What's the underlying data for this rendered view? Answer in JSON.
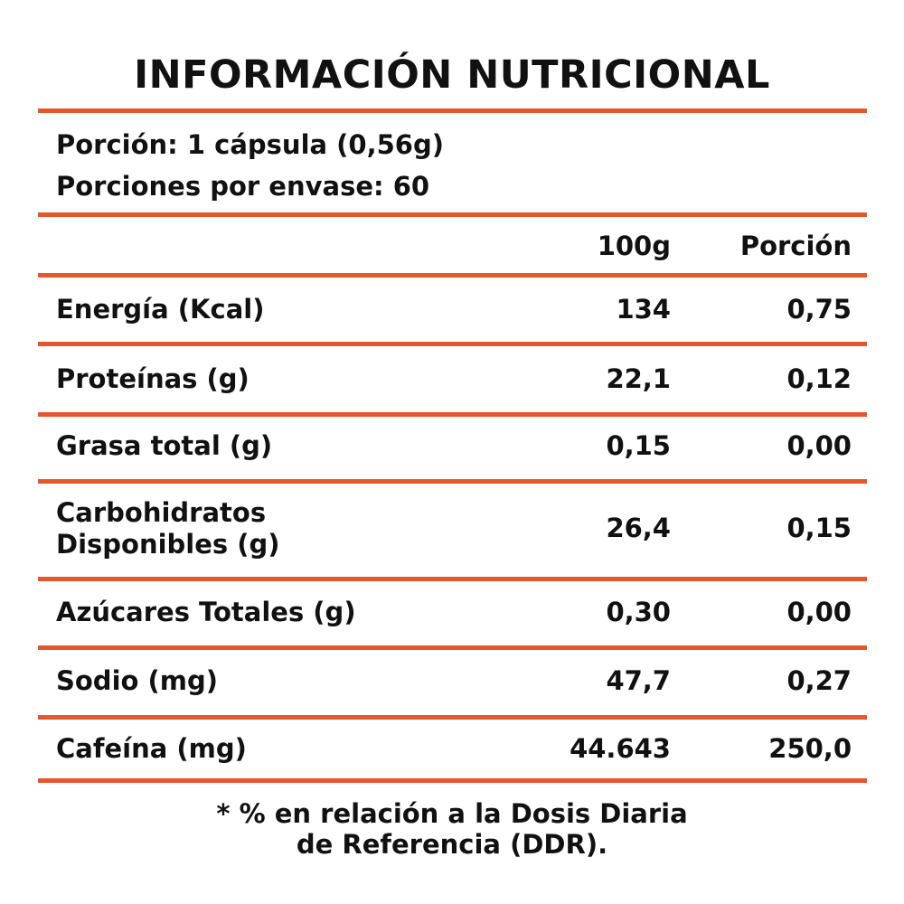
{
  "title": "INFORMACIÓN NUTRICIONAL",
  "serving": {
    "portion": "Porción: 1 cápsula (0,56g)",
    "servings_per_container": "Porciones por envase: 60"
  },
  "columns": {
    "per_100g": "100g",
    "per_portion": "Porción"
  },
  "rows": [
    {
      "label_line1": "Energía (Kcal)",
      "label_line2": "",
      "per_100g": "134",
      "per_portion": "0,75"
    },
    {
      "label_line1": "Proteínas (g)",
      "label_line2": "",
      "per_100g": "22,1",
      "per_portion": "0,12"
    },
    {
      "label_line1": "Grasa total (g)",
      "label_line2": "",
      "per_100g": "0,15",
      "per_portion": "0,00"
    },
    {
      "label_line1": "Carbohidratos",
      "label_line2": "Disponibles (g)",
      "per_100g": "26,4",
      "per_portion": "0,15"
    },
    {
      "label_line1": "Azúcares Totales (g)",
      "label_line2": "",
      "per_100g": "0,30",
      "per_portion": "0,00"
    },
    {
      "label_line1": "Sodio (mg)",
      "label_line2": "",
      "per_100g": "47,7",
      "per_portion": "0,27"
    },
    {
      "label_line1": "Cafeína (mg)",
      "label_line2": "",
      "per_100g": "44.643",
      "per_portion": "250,0"
    }
  ],
  "footnote": {
    "line1": "* % en relación a la Dosis Diaria",
    "line2": "de Referencia (DDR)."
  },
  "colors": {
    "rule": "#e2582a",
    "text": "#111111",
    "background": "#ffffff"
  }
}
